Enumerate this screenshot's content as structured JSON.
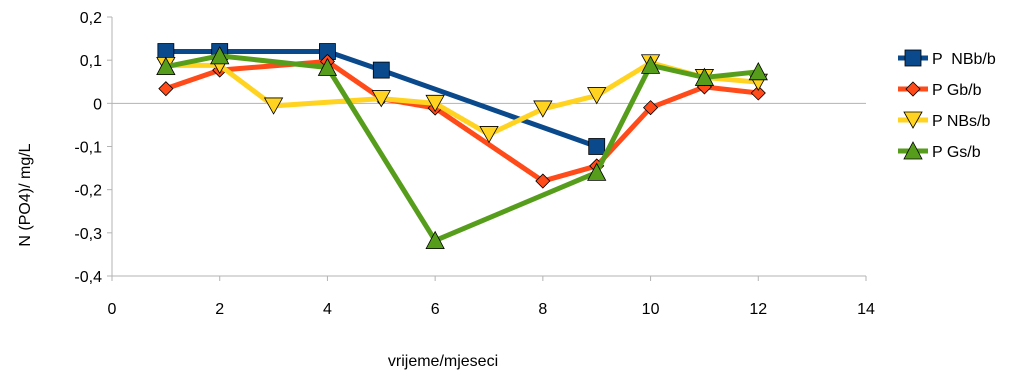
{
  "chart_data": {
    "type": "line",
    "xlabel": "vrijeme/mjeseci",
    "ylabel": "N (PO4)/ mg/L",
    "xlim": [
      0,
      14
    ],
    "ylim": [
      -0.4,
      0.2
    ],
    "x_ticks": [
      0,
      2,
      4,
      6,
      8,
      10,
      12,
      14
    ],
    "y_ticks": [
      -0.4,
      -0.3,
      -0.2,
      -0.1,
      0,
      0.1,
      0.2
    ],
    "x_tick_labels": [
      "0",
      "2",
      "4",
      "6",
      "8",
      "10",
      "12",
      "14"
    ],
    "y_tick_labels": [
      "-0,4",
      "-0,3",
      "-0,2",
      "-0,1",
      "0",
      "0,1",
      "0,2"
    ],
    "grid": "horizontal line at 0 only",
    "legend_position": "right",
    "series": [
      {
        "name": "P  NBb/b",
        "color": "#0a4a8c",
        "marker": "square",
        "points": [
          [
            1,
            0.12
          ],
          [
            2,
            0.12
          ],
          [
            4,
            0.12
          ],
          [
            5,
            0.077
          ],
          [
            9,
            -0.1
          ]
        ]
      },
      {
        "name": "P Gb/b",
        "color": "#ff4a1a",
        "marker": "diamond",
        "points": [
          [
            1,
            0.034
          ],
          [
            2,
            0.077
          ],
          [
            4,
            0.097
          ],
          [
            5,
            0.011
          ],
          [
            6,
            -0.011
          ],
          [
            8,
            -0.18
          ],
          [
            9,
            -0.145
          ],
          [
            10,
            -0.01
          ],
          [
            11,
            0.038
          ],
          [
            12,
            0.024
          ]
        ]
      },
      {
        "name": "P NBs/b",
        "color": "#ffd320",
        "marker": "triangle-down",
        "points": [
          [
            1,
            0.088
          ],
          [
            2,
            0.088
          ],
          [
            3,
            -0.006
          ],
          [
            5,
            0.011
          ],
          [
            6,
            0.0
          ],
          [
            7,
            -0.072
          ],
          [
            8,
            -0.013
          ],
          [
            9,
            0.018
          ],
          [
            10,
            0.094
          ],
          [
            11,
            0.06
          ],
          [
            12,
            0.049
          ]
        ]
      },
      {
        "name": "P Gs/b",
        "color": "#579d1c",
        "marker": "triangle-up",
        "points": [
          [
            1,
            0.085
          ],
          [
            2,
            0.11
          ],
          [
            4,
            0.083
          ],
          [
            6,
            -0.318
          ],
          [
            9,
            -0.16
          ],
          [
            10,
            0.088
          ],
          [
            11,
            0.06
          ],
          [
            12,
            0.073
          ]
        ]
      }
    ]
  }
}
